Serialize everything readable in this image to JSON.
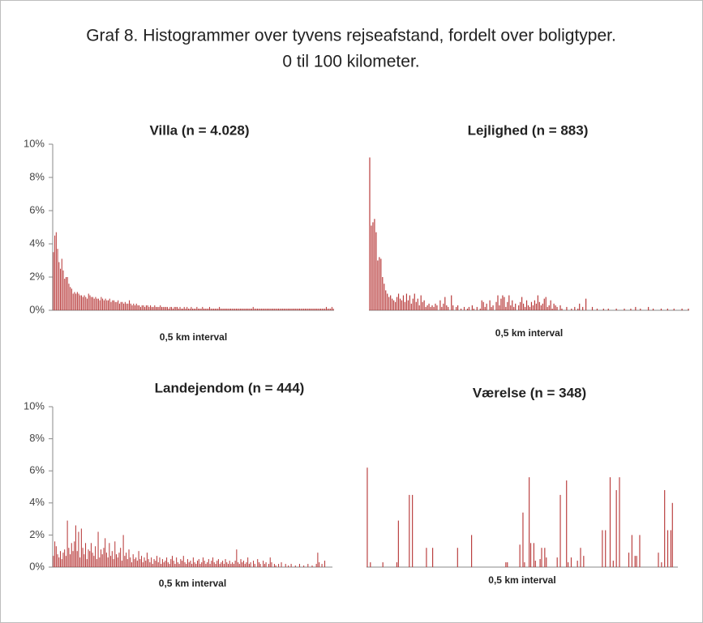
{
  "page_title": [
    "Graf 8. Histogrammer over tyvens rejseafstand, fordelt over boligtyper.",
    "0 til 100 kilometer."
  ],
  "chart_data": [
    {
      "type": "bar",
      "title": "Villa (n = 4.028)",
      "x_label": "0,5 km interval",
      "color": "#b83a3a",
      "ylim": [
        0,
        10
      ],
      "yticks": [
        {
          "value": 0,
          "label": "0%"
        },
        {
          "value": 2,
          "label": "2%"
        },
        {
          "value": 4,
          "label": "4%"
        },
        {
          "value": 6,
          "label": "6%"
        },
        {
          "value": 8,
          "label": "8%"
        },
        {
          "value": 10,
          "label": "10%"
        }
      ],
      "values": [
        3.5,
        4.5,
        4.7,
        3.7,
        2.9,
        2.5,
        3.1,
        2.4,
        1.9,
        2.0,
        2.0,
        1.6,
        1.4,
        1.3,
        1.0,
        1.1,
        1.0,
        1.1,
        1.0,
        0.9,
        0.9,
        0.8,
        0.9,
        0.8,
        0.7,
        1.0,
        0.9,
        0.8,
        0.8,
        0.7,
        0.8,
        0.7,
        0.7,
        0.6,
        0.8,
        0.7,
        0.6,
        0.7,
        0.6,
        0.6,
        0.7,
        0.5,
        0.6,
        0.6,
        0.5,
        0.5,
        0.6,
        0.4,
        0.5,
        0.5,
        0.4,
        0.5,
        0.4,
        0.4,
        0.6,
        0.4,
        0.3,
        0.4,
        0.3,
        0.4,
        0.3,
        0.3,
        0.2,
        0.3,
        0.3,
        0.2,
        0.3,
        0.3,
        0.2,
        0.3,
        0.2,
        0.2,
        0.3,
        0.2,
        0.2,
        0.2,
        0.3,
        0.2,
        0.2,
        0.2,
        0.2,
        0.2,
        0.1,
        0.2,
        0.2,
        0.1,
        0.2,
        0.2,
        0.2,
        0.1,
        0.2,
        0.1,
        0.1,
        0.2,
        0.1,
        0.2,
        0.1,
        0.1,
        0.2,
        0.1,
        0.1,
        0.1,
        0.2,
        0.1,
        0.1,
        0.1,
        0.2,
        0.1,
        0.1,
        0.1,
        0.1,
        0.2,
        0.1,
        0.1,
        0.1,
        0.1,
        0.1,
        0.1,
        0.2,
        0.1,
        0.1,
        0.1,
        0.1,
        0.1,
        0.1,
        0.1,
        0.1,
        0.1,
        0.1,
        0.1,
        0.1,
        0.1,
        0.1,
        0.1,
        0.1,
        0.1,
        0.1,
        0.1,
        0.1,
        0.1,
        0.1,
        0.1,
        0.2,
        0.1,
        0.1,
        0.1,
        0.1,
        0.1,
        0.1,
        0.1,
        0.1,
        0.1,
        0.1,
        0.1,
        0.1,
        0.1,
        0.1,
        0.1,
        0.1,
        0.1,
        0.1,
        0.1,
        0.1,
        0.1,
        0.1,
        0.1,
        0.1,
        0.1,
        0.1,
        0.1,
        0.1,
        0.1,
        0.1,
        0.1,
        0.1,
        0.1,
        0.1,
        0.1,
        0.1,
        0.1,
        0.1,
        0.1,
        0.1,
        0.1,
        0.1,
        0.1,
        0.1,
        0.1,
        0.1,
        0.1,
        0.1,
        0.1,
        0.1,
        0.1,
        0.2,
        0.1,
        0.1,
        0.1,
        0.2,
        0.1
      ]
    },
    {
      "type": "bar",
      "title": "Lejlighed (n = 883)",
      "x_label": "0,5 km interval",
      "color": "#b83a3a",
      "ylim": [
        0,
        10
      ],
      "values": [
        9.2,
        5.1,
        5.3,
        5.5,
        4.7,
        3.0,
        3.2,
        3.1,
        2.0,
        1.6,
        1.2,
        1.0,
        0.8,
        0.9,
        0.7,
        0.6,
        0.5,
        0.8,
        1.0,
        0.7,
        0.6,
        0.9,
        0.5,
        1.0,
        0.6,
        0.9,
        0.4,
        0.7,
        1.0,
        0.5,
        0.7,
        0.3,
        0.9,
        0.5,
        0.6,
        0.2,
        0.3,
        0.4,
        0.2,
        0.3,
        0.2,
        0.4,
        0.3,
        0,
        0.6,
        0.2,
        0.4,
        0.8,
        0.3,
        0.2,
        0,
        0.9,
        0.3,
        0,
        0.2,
        0.3,
        0,
        0.1,
        0,
        0.2,
        0,
        0.1,
        0.2,
        0,
        0.3,
        0.1,
        0,
        0.2,
        0,
        0.1,
        0.6,
        0.5,
        0.2,
        0.4,
        0,
        0.6,
        0.2,
        0.3,
        0,
        0.5,
        0.9,
        0.3,
        0.7,
        0.9,
        0.8,
        0.2,
        0.5,
        0.9,
        0.3,
        0.6,
        0.2,
        0.4,
        0,
        0.3,
        0.5,
        0.8,
        0.4,
        0.2,
        0.6,
        0.3,
        0.2,
        0.5,
        0.3,
        0.6,
        0.4,
        0.9,
        0.5,
        0.3,
        0.4,
        0.7,
        0.8,
        0.2,
        0.3,
        0.6,
        0.1,
        0.4,
        0.3,
        0.2,
        0,
        0.3,
        0.1,
        0,
        0,
        0.2,
        0,
        0,
        0.1,
        0,
        0.2,
        0,
        0.1,
        0.4,
        0,
        0.2,
        0,
        0.7,
        0,
        0,
        0,
        0.2,
        0,
        0,
        0.1,
        0,
        0,
        0,
        0.1,
        0,
        0,
        0.1,
        0,
        0,
        0,
        0,
        0.1,
        0,
        0,
        0,
        0,
        0.1,
        0,
        0,
        0,
        0.1,
        0,
        0,
        0.2,
        0,
        0,
        0.1,
        0,
        0,
        0,
        0,
        0.2,
        0,
        0,
        0.1,
        0,
        0,
        0,
        0,
        0.1,
        0,
        0,
        0,
        0.1,
        0,
        0,
        0,
        0.1,
        0,
        0,
        0,
        0,
        0.1,
        0,
        0,
        0,
        0.1
      ]
    },
    {
      "type": "bar",
      "title": "Landejendom (n = 444)",
      "x_label": "0,5 km interval",
      "color": "#b83a3a",
      "ylim": [
        0,
        10
      ],
      "yticks": [
        {
          "value": 0,
          "label": "0%"
        },
        {
          "value": 2,
          "label": "2%"
        },
        {
          "value": 4,
          "label": "4%"
        },
        {
          "value": 6,
          "label": "6%"
        },
        {
          "value": 8,
          "label": "8%"
        },
        {
          "value": 10,
          "label": "10%"
        }
      ],
      "values": [
        0.7,
        1.6,
        1.3,
        0.8,
        0.6,
        1.0,
        0.5,
        0.9,
        1.1,
        0.7,
        2.9,
        1.2,
        0.8,
        1.5,
        1.0,
        1.6,
        2.6,
        1.0,
        2.2,
        0.6,
        2.4,
        1.2,
        0.8,
        1.5,
        0.5,
        1.1,
        1.0,
        1.5,
        0.9,
        0.7,
        1.3,
        0.5,
        2.2,
        0.6,
        1.1,
        0.8,
        1.2,
        1.8,
        0.9,
        0.6,
        1.5,
        0.7,
        1.0,
        0.5,
        1.6,
        0.8,
        0.6,
        0.9,
        1.2,
        0.4,
        2.0,
        0.7,
        0.9,
        0.5,
        1.1,
        0.6,
        0.3,
        0.8,
        0.5,
        0.6,
        0.4,
        1.0,
        0.5,
        0.7,
        0.3,
        0.6,
        0.4,
        0.9,
        0.5,
        0.3,
        0.6,
        0.2,
        0.5,
        0.4,
        0.7,
        0.3,
        0.6,
        0.2,
        0.5,
        0.3,
        0.4,
        0.6,
        0.3,
        0.2,
        0.5,
        0.7,
        0.4,
        0.2,
        0.6,
        0.3,
        0.2,
        0.5,
        0.4,
        0.7,
        0.3,
        0.2,
        0.5,
        0.3,
        0.4,
        0.2,
        0.6,
        0.3,
        0.2,
        0.4,
        0.5,
        0.2,
        0.3,
        0.6,
        0.4,
        0.2,
        0.3,
        0.5,
        0.2,
        0.4,
        0.6,
        0.3,
        0.2,
        0.4,
        0.5,
        0.2,
        0.3,
        0.4,
        0.2,
        0.5,
        0.3,
        0.2,
        0.4,
        0.2,
        0.3,
        0.2,
        0.4,
        1.1,
        0.3,
        0.2,
        0.5,
        0.3,
        0.4,
        0.2,
        0.3,
        0.6,
        0.2,
        0.3,
        0,
        0.4,
        0.2,
        0,
        0.5,
        0.3,
        0.2,
        0,
        0.4,
        0.2,
        0.3,
        0,
        0.2,
        0.6,
        0.3,
        0,
        0.2,
        0.1,
        0,
        0.2,
        0,
        0.3,
        0,
        0,
        0.2,
        0,
        0.1,
        0,
        0.2,
        0,
        0,
        0.1,
        0,
        0,
        0.2,
        0,
        0,
        0.1,
        0,
        0,
        0.2,
        0,
        0,
        0.1,
        0,
        0,
        0.2,
        0.9,
        0.3,
        0,
        0.2,
        0,
        0.4,
        0,
        0,
        0,
        0,
        0
      ]
    },
    {
      "type": "bar",
      "title": "Værelse (n = 348)",
      "x_label": "0,5 km interval",
      "color": "#b83a3a",
      "ylim": [
        0,
        10
      ],
      "values": [
        6.2,
        0,
        0.3,
        0,
        0,
        0,
        0,
        0,
        0,
        0,
        0.3,
        0,
        0,
        0,
        0,
        0,
        0,
        0,
        0,
        0.3,
        2.9,
        0,
        0,
        0,
        0,
        0,
        0,
        4.5,
        0,
        4.5,
        0,
        0,
        0,
        0,
        0,
        0,
        0,
        0,
        1.2,
        0,
        0,
        0,
        1.2,
        0,
        0,
        0,
        0,
        0,
        0,
        0,
        0,
        0,
        0,
        0,
        0,
        0,
        0,
        0,
        1.2,
        0,
        0,
        0,
        0,
        0,
        0,
        0,
        0,
        2.0,
        0,
        0,
        0,
        0,
        0,
        0,
        0,
        0,
        0,
        0,
        0,
        0,
        0,
        0,
        0,
        0,
        0,
        0,
        0,
        0,
        0,
        0.3,
        0.3,
        0,
        0,
        0,
        0,
        0,
        0,
        0,
        1.4,
        0,
        3.4,
        0.3,
        0,
        0,
        5.6,
        1.5,
        0,
        1.5,
        0.4,
        0,
        0,
        0.5,
        1.2,
        0,
        1.2,
        0.6,
        0,
        0,
        0,
        0,
        0,
        0,
        0.6,
        0,
        4.5,
        0,
        0,
        0,
        5.4,
        0.3,
        0,
        0.6,
        0,
        0,
        0,
        0.4,
        0,
        1.2,
        0,
        0.7,
        0,
        0,
        0,
        0,
        0,
        0,
        0,
        0,
        0,
        0,
        0,
        2.3,
        0,
        2.3,
        0,
        0,
        5.6,
        0,
        0.4,
        0,
        4.8,
        0,
        5.6,
        0,
        0,
        0,
        0,
        0,
        0.9,
        0,
        2.0,
        0,
        0.7,
        0.7,
        0,
        2.0,
        0,
        0,
        0,
        0,
        0,
        0,
        0,
        0,
        0,
        0,
        0,
        0.9,
        0,
        0.3,
        0,
        4.8,
        0,
        2.3,
        0,
        2.3,
        4.0,
        0,
        0,
        0
      ]
    }
  ]
}
